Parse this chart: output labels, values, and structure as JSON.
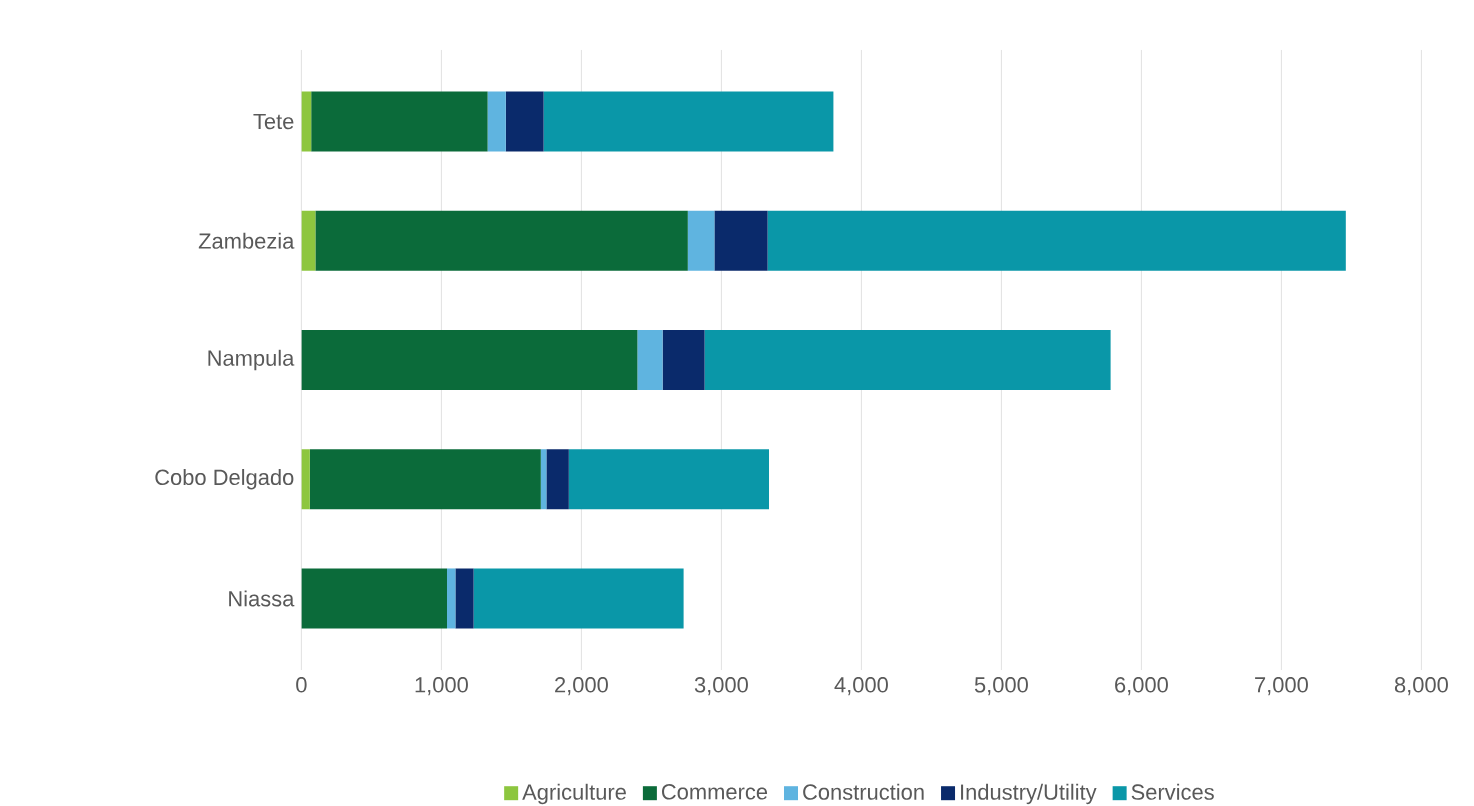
{
  "chart_data": {
    "type": "bar",
    "orientation": "horizontal",
    "stacked": true,
    "categories": [
      "Tete",
      "Zambezia",
      "Nampula",
      "Cobo Delgado",
      "Niassa"
    ],
    "series": [
      {
        "name": "Agriculture",
        "color": "#8dc63f",
        "values": [
          70,
          100,
          0,
          60,
          0
        ]
      },
      {
        "name": "Commerce",
        "color": "#0b6b3a",
        "values": [
          1260,
          2660,
          2400,
          1650,
          1040
        ]
      },
      {
        "name": "Construction",
        "color": "#5fb4e0",
        "values": [
          130,
          190,
          180,
          40,
          60
        ]
      },
      {
        "name": "Industry/Utility",
        "color": "#0a2a6b",
        "values": [
          270,
          380,
          300,
          160,
          130
        ]
      },
      {
        "name": "Services",
        "color": "#0a97a8",
        "values": [
          2070,
          4130,
          2900,
          1430,
          1500
        ]
      }
    ],
    "xlim": [
      0,
      8000
    ],
    "xticks": [
      0,
      {
        "value": 1000,
        "label": "1,000"
      },
      {
        "value": 2000,
        "label": "2,000"
      },
      {
        "value": 3000,
        "label": "3,000"
      },
      {
        "value": 4000,
        "label": "4,000"
      },
      {
        "value": 5000,
        "label": "5,000"
      },
      {
        "value": 6000,
        "label": "6,000"
      },
      {
        "value": 7000,
        "label": "7,000"
      },
      {
        "value": 8000,
        "label": "8,000"
      }
    ],
    "grid": "x",
    "legend": "bottom"
  }
}
